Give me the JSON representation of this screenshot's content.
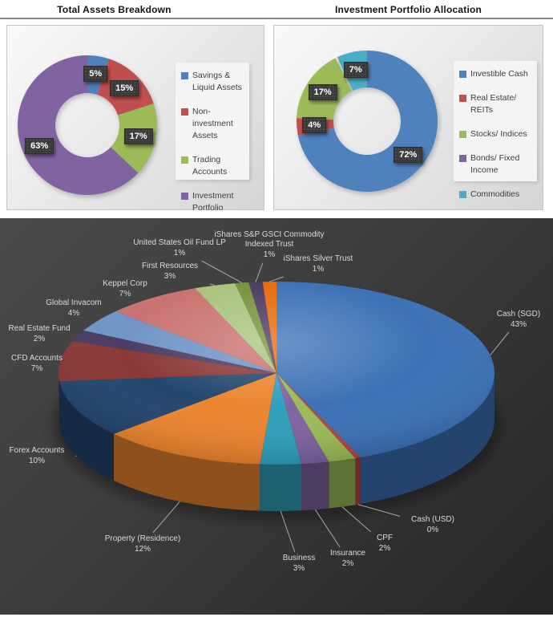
{
  "chart_data": [
    {
      "type": "pie",
      "subtype": "donut",
      "title": "Total Assets Breakdown",
      "categories": [
        "Savings & Liquid Assets",
        "Non-investment Assets",
        "Trading Accounts",
        "Investment Portfolio"
      ],
      "values": [
        5,
        15,
        17,
        63
      ],
      "data_labels": [
        "5%",
        "15%",
        "17%",
        "63%"
      ],
      "colors": [
        "#4F81BD",
        "#C0504D",
        "#9BBB59",
        "#8064A2"
      ],
      "legend_position": "right",
      "hole": "46%"
    },
    {
      "type": "pie",
      "subtype": "donut",
      "title": "Investment Portfolio Allocation",
      "categories": [
        "Investible Cash",
        "Real Estate/ REITs",
        "Stocks/ Indices",
        "Bonds/ Fixed Income",
        "Commodities"
      ],
      "values": [
        72,
        4,
        17,
        0,
        7
      ],
      "data_labels": [
        "72%",
        "4%",
        "17%",
        "",
        "7%"
      ],
      "colors": [
        "#4F81BD",
        "#C0504D",
        "#9BBB59",
        "#8064A2",
        "#4BACC6"
      ],
      "legend_position": "right",
      "hole": "48%"
    },
    {
      "type": "pie",
      "subtype": "pie3d",
      "title": "",
      "categories": [
        "Cash (SGD)",
        "Cash (USD)",
        "CPF",
        "Insurance",
        "Business",
        "Property (Residence)",
        "Forex Accounts",
        "CFD Accounts",
        "Real Estate Fund",
        "Global Invacom",
        "Keppel Corp",
        "First Resources",
        "United States Oil Fund LP",
        "iShares S&P GSCI Commodity Indexed Trust",
        "iShares Silver Trust"
      ],
      "values": [
        43,
        0,
        2,
        2,
        3,
        12,
        10,
        7,
        2,
        4,
        7,
        3,
        1,
        1,
        1
      ],
      "data_labels": [
        "43%",
        "0%",
        "2%",
        "2%",
        "3%",
        "12%",
        "10%",
        "7%",
        "2%",
        "4%",
        "7%",
        "3%",
        "1%",
        "1%",
        "1%"
      ],
      "colors": [
        "#3D72B6",
        "#B94441",
        "#9BBB59",
        "#8064A2",
        "#31A0BC",
        "#EC8630",
        "#24476F",
        "#8A3937",
        "#4A3C63",
        "#6F94C6",
        "#C97371",
        "#A8C47E",
        "#77933C",
        "#4D3B62",
        "#E66C0A"
      ],
      "background": "#3a3a3a",
      "label_color": "#dadada",
      "legend_position": "none"
    }
  ]
}
